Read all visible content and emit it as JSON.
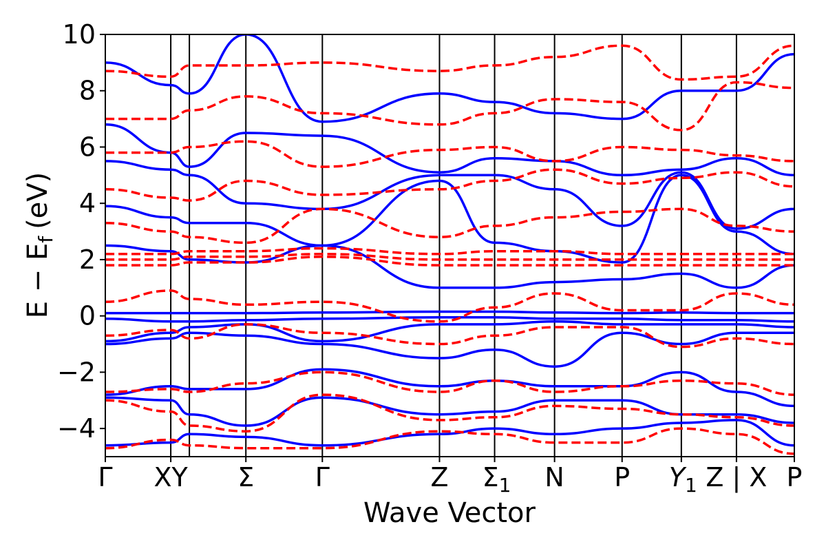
{
  "chart_data": {
    "type": "line",
    "xlabel": "Wave Vector",
    "ylabel": "E − E",
    "ylabel_subscript": "f",
    "ylabel_unit": "(eV)",
    "ylim": [
      -5,
      10
    ],
    "yticks": [
      -4,
      -2,
      0,
      2,
      4,
      6,
      8,
      10
    ],
    "ytick_labels": [
      "−4",
      "−2",
      "0",
      "2",
      "4",
      "6",
      "8",
      "10"
    ],
    "kpath": [
      {
        "label": "Γ",
        "position": 0.0
      },
      {
        "label": "XY",
        "position": 0.095
      },
      {
        "label": "Σ",
        "position": 0.204
      },
      {
        "label": "Γ",
        "position": 0.315
      },
      {
        "label": "Z",
        "position": 0.485
      },
      {
        "label": "Σ",
        "sub": "1",
        "position": 0.565
      },
      {
        "label": "N",
        "position": 0.652
      },
      {
        "label": "P",
        "position": 0.75
      },
      {
        "label": "Y",
        "sub": "1",
        "position": 0.836
      },
      {
        "label": "Z | X",
        "position": 0.916
      },
      {
        "label": "P",
        "position": 1.0
      }
    ],
    "vlines": [
      0.0,
      0.095,
      0.122,
      0.204,
      0.315,
      0.485,
      0.565,
      0.652,
      0.75,
      0.836,
      0.916,
      1.0
    ],
    "colors": {
      "series_a": "#0000ff",
      "series_b": "#ff0000"
    },
    "series": [
      {
        "style": "solid",
        "color": "#0000ff",
        "bands": [
          [
            0.1,
            0.1,
            0.1,
            0.1,
            0.12,
            0.15,
            0.15,
            0.12,
            0.1,
            0.12,
            0.1,
            0.1
          ],
          [
            -0.1,
            -0.2,
            -0.2,
            -0.15,
            -0.1,
            -0.05,
            -0.05,
            -0.1,
            -0.1,
            -0.15,
            -0.15,
            -0.2
          ],
          [
            -0.9,
            -0.6,
            -0.4,
            -0.3,
            -0.9,
            -0.3,
            -0.3,
            -0.2,
            -0.3,
            -0.3,
            -0.3,
            -0.4
          ],
          [
            -1.0,
            -0.8,
            -0.6,
            -0.7,
            -1.0,
            -1.5,
            -1.2,
            -1.8,
            -0.6,
            -1.0,
            -0.6,
            -0.6
          ],
          [
            2.5,
            2.3,
            2.0,
            1.9,
            2.5,
            1.0,
            1.0,
            1.2,
            1.3,
            1.5,
            1.0,
            1.8
          ],
          [
            3.9,
            3.5,
            3.3,
            3.3,
            2.5,
            4.8,
            2.6,
            2.3,
            1.9,
            5.0,
            3.0,
            2.2
          ],
          [
            5.5,
            5.2,
            5.0,
            4.0,
            3.8,
            5.0,
            5.0,
            4.5,
            3.2,
            5.1,
            3.1,
            3.8
          ],
          [
            6.8,
            5.8,
            5.3,
            6.5,
            6.4,
            5.1,
            5.6,
            5.5,
            5.0,
            5.2,
            5.6,
            5.0
          ],
          [
            9.0,
            8.2,
            7.9,
            10.0,
            6.9,
            7.9,
            7.6,
            7.2,
            7.0,
            8.0,
            8.0,
            9.3
          ],
          [
            -2.8,
            -2.5,
            -2.6,
            -2.6,
            -1.9,
            -2.5,
            -2.3,
            -2.5,
            -2.5,
            -2.0,
            -2.7,
            -3.2
          ],
          [
            -2.9,
            -3.0,
            -3.5,
            -3.9,
            -2.9,
            -3.5,
            -3.4,
            -3.0,
            -3.0,
            -3.5,
            -3.5,
            -3.8
          ],
          [
            -4.6,
            -4.5,
            -4.2,
            -4.3,
            -4.6,
            -4.2,
            -4.0,
            -4.2,
            -4.0,
            -3.8,
            -3.7,
            -4.6
          ]
        ]
      },
      {
        "style": "dashed",
        "color": "#ff0000",
        "bands": [
          [
            0.5,
            0.9,
            0.6,
            0.4,
            0.5,
            -0.2,
            0.3,
            0.8,
            0.2,
            0.2,
            0.8,
            0.4
          ],
          [
            -0.7,
            -0.5,
            -0.8,
            -0.3,
            -0.6,
            -1.0,
            -0.7,
            -0.4,
            -0.4,
            -1.1,
            -0.8,
            -1.0
          ],
          [
            1.8,
            1.8,
            1.9,
            1.9,
            2.1,
            1.8,
            1.8,
            1.8,
            1.8,
            1.8,
            1.8,
            1.8
          ],
          [
            2.0,
            2.0,
            2.1,
            2.1,
            2.2,
            2.0,
            2.0,
            2.0,
            2.0,
            2.0,
            2.0,
            2.0
          ],
          [
            2.2,
            2.2,
            2.3,
            2.3,
            2.4,
            2.2,
            2.3,
            2.3,
            2.2,
            2.2,
            2.2,
            2.2
          ],
          [
            3.3,
            3.0,
            2.8,
            2.6,
            3.8,
            2.8,
            3.2,
            3.5,
            3.7,
            3.8,
            3.2,
            3.0
          ],
          [
            4.5,
            4.2,
            4.1,
            4.8,
            4.3,
            4.5,
            4.8,
            5.2,
            4.7,
            4.9,
            5.1,
            4.6
          ],
          [
            5.8,
            5.8,
            6.0,
            6.2,
            5.3,
            5.9,
            6.0,
            5.5,
            6.0,
            5.9,
            5.7,
            5.5
          ],
          [
            7.0,
            7.0,
            7.3,
            7.8,
            7.2,
            6.8,
            7.2,
            7.7,
            7.6,
            6.6,
            8.3,
            8.1
          ],
          [
            8.7,
            8.5,
            8.9,
            8.9,
            9.0,
            8.7,
            8.9,
            9.2,
            9.6,
            8.4,
            8.5,
            9.6
          ],
          [
            -2.7,
            -2.6,
            -2.7,
            -2.4,
            -2.0,
            -2.7,
            -2.3,
            -2.7,
            -2.5,
            -2.3,
            -2.4,
            -2.8
          ],
          [
            -3.0,
            -3.4,
            -3.9,
            -4.1,
            -2.8,
            -3.7,
            -3.6,
            -3.2,
            -3.3,
            -3.5,
            -3.6,
            -3.9
          ],
          [
            -4.7,
            -4.4,
            -4.6,
            -4.7,
            -4.7,
            -4.1,
            -4.2,
            -4.5,
            -4.5,
            -4.0,
            -4.2,
            -4.9
          ]
        ]
      }
    ]
  }
}
